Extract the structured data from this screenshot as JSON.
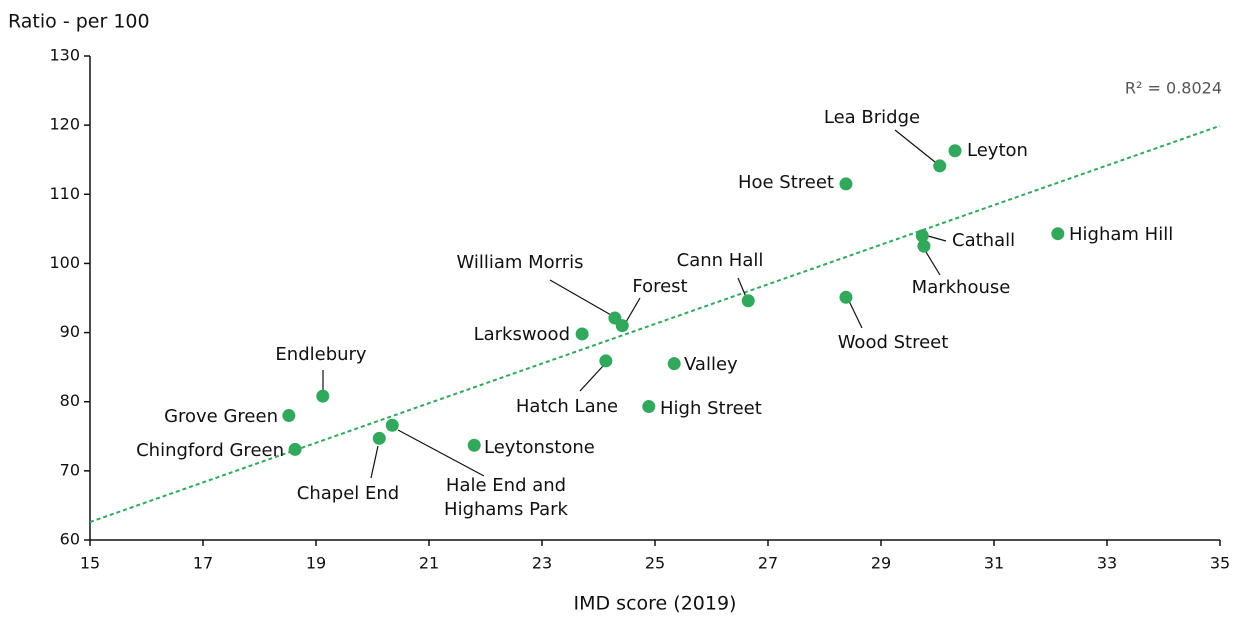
{
  "chart_data": {
    "type": "scatter",
    "y_label": "Ratio - per 100",
    "x_label": "IMD score (2019)",
    "annotation": "R² = 0.8024",
    "color": "#31a85c",
    "names": [
      "Lea Bridge",
      "Leyton",
      "Hoe Street",
      "Cathall",
      "Markhouse",
      "Higham Hill",
      "Cann Hall",
      "Wood Street",
      "William Morris",
      "Forest",
      "Larkswood",
      "Hatch Lane",
      "Valley",
      "High Street",
      "Endlebury",
      "Grove Green",
      "Chingford Green",
      "Chapel End",
      "Hale End and Highams Park",
      "Leytonstone"
    ],
    "x": [
      30.04,
      30.31,
      28.38,
      29.73,
      29.76,
      32.13,
      26.65,
      28.38,
      24.29,
      24.42,
      23.71,
      24.13,
      25.34,
      24.89,
      19.12,
      18.52,
      18.63,
      20.12,
      20.35,
      21.8
    ],
    "values": [
      114.1,
      116.3,
      111.5,
      104.0,
      102.5,
      104.3,
      94.6,
      95.1,
      92.1,
      91.0,
      89.8,
      85.9,
      85.5,
      79.3,
      80.8,
      78.0,
      73.1,
      74.7,
      76.6,
      73.7
    ],
    "trendline": {
      "x": [
        15,
        35
      ],
      "values": [
        62.6,
        119.9
      ]
    },
    "xlim": [
      15,
      35
    ],
    "xticks": [
      15,
      17,
      19,
      21,
      23,
      25,
      27,
      29,
      31,
      33,
      35
    ],
    "ylim": [
      60,
      130
    ],
    "yticks": [
      60,
      70,
      80,
      90,
      100,
      110,
      120,
      130
    ]
  }
}
